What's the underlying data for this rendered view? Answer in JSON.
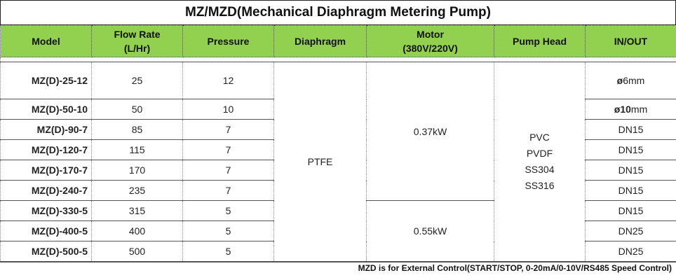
{
  "title": "MZ/MZD(Mechanical Diaphragm Metering Pump)",
  "headers": {
    "model": "Model",
    "flow_line1": "Flow Rate",
    "flow_line2": "(L/Hr)",
    "pressure": "Pressure",
    "diaphragm": "Diaphragm",
    "motor_line1": "Motor",
    "motor_line2": "(380V/220V)",
    "pump_head": "Pump Head",
    "in_out": "IN/OUT"
  },
  "rows": [
    {
      "model": "MZ(D)-25-12",
      "flow": "25",
      "pressure": "12",
      "io_symbol": "ø",
      "io_value": "6",
      "io_unit": "mm"
    },
    {
      "model": "MZ(D)-50-10",
      "flow": "50",
      "pressure": "10",
      "io_symbol": "ø",
      "io_value": "10",
      "io_unit": "mm"
    },
    {
      "model": "MZ(D)-90-7",
      "flow": "85",
      "pressure": "7",
      "io": "DN15"
    },
    {
      "model": "MZ(D)-120-7",
      "flow": "115",
      "pressure": "7",
      "io": "DN15"
    },
    {
      "model": "MZ(D)-170-7",
      "flow": "170",
      "pressure": "7",
      "io": "DN15"
    },
    {
      "model": "MZ(D)-240-7",
      "flow": "235",
      "pressure": "7",
      "io": "DN15"
    },
    {
      "model": "MZ(D)-330-5",
      "flow": "315",
      "pressure": "5",
      "io": "DN15"
    },
    {
      "model": "MZ(D)-400-5",
      "flow": "400",
      "pressure": "5",
      "io": "DN25"
    },
    {
      "model": "MZ(D)-500-5",
      "flow": "500",
      "pressure": "5",
      "io": "DN25"
    }
  ],
  "diaphragm": "PTFE",
  "motor": {
    "small": "0.37kW",
    "large": "0.55kW"
  },
  "pump_head": [
    "PVC",
    "PVDF",
    "SS304",
    "SS316"
  ],
  "footer_note": "MZD is for External Control(START/STOP, 0-20mA/0-10V/RS485 Speed Control)",
  "colors": {
    "header_bg": "#92d050"
  }
}
